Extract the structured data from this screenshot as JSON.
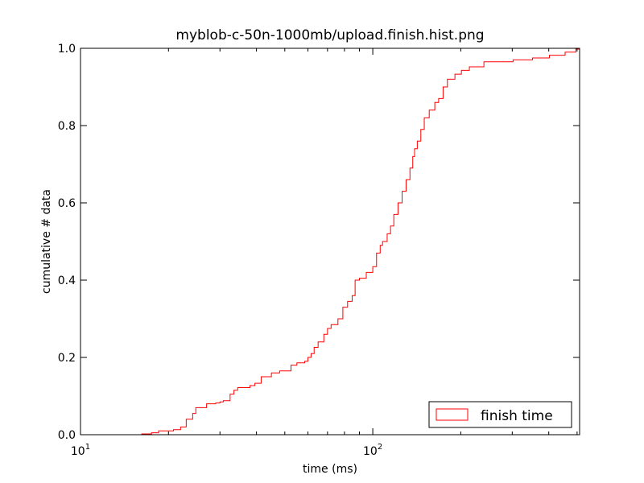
{
  "chart_data": {
    "type": "line",
    "title": "myblob-c-50n-1000mb/upload.finish.hist.png",
    "xlabel": "time (ms)",
    "ylabel": "cumulative # data",
    "xscale": "log",
    "xlim": [
      10,
      510
    ],
    "ylim": [
      0,
      1.0
    ],
    "x_ticks": [
      {
        "value": 10,
        "base": "10",
        "exp": "1"
      },
      {
        "value": 100,
        "base": "10",
        "exp": "2"
      }
    ],
    "y_ticks": [
      {
        "value": 0.0,
        "label": "0.0"
      },
      {
        "value": 0.2,
        "label": "0.2"
      },
      {
        "value": 0.4,
        "label": "0.4"
      },
      {
        "value": 0.6,
        "label": "0.6"
      },
      {
        "value": 0.8,
        "label": "0.8"
      },
      {
        "value": 1.0,
        "label": "1.0"
      }
    ],
    "grid": false,
    "legend_position": "lower-right",
    "series": [
      {
        "name": "finish time",
        "color": "#ff0000",
        "style": "step",
        "x": [
          16.2,
          17.5,
          18.5,
          20.8,
          22,
          23,
          24.2,
          24.8,
          27,
          29,
          30,
          30.8,
          32.5,
          33.5,
          34.5,
          38,
          39.5,
          41.5,
          45,
          48,
          52.5,
          55,
          58.5,
          60,
          61.5,
          63,
          65,
          68,
          70,
          72,
          76,
          79,
          82,
          85,
          87,
          90,
          95,
          100,
          103,
          106,
          108,
          112,
          115,
          118,
          122,
          126,
          130,
          134,
          137,
          139,
          142,
          146,
          150,
          156,
          163,
          168,
          174,
          180,
          191,
          201,
          214,
          240,
          302,
          352,
          402,
          455,
          495,
          510
        ],
        "y": [
          0.002,
          0.005,
          0.01,
          0.013,
          0.02,
          0.04,
          0.055,
          0.07,
          0.08,
          0.082,
          0.085,
          0.088,
          0.105,
          0.115,
          0.122,
          0.127,
          0.133,
          0.15,
          0.16,
          0.165,
          0.18,
          0.186,
          0.19,
          0.2,
          0.21,
          0.226,
          0.24,
          0.26,
          0.275,
          0.285,
          0.3,
          0.33,
          0.345,
          0.36,
          0.4,
          0.405,
          0.42,
          0.435,
          0.47,
          0.49,
          0.5,
          0.52,
          0.54,
          0.57,
          0.6,
          0.63,
          0.66,
          0.69,
          0.72,
          0.74,
          0.76,
          0.79,
          0.82,
          0.84,
          0.86,
          0.87,
          0.9,
          0.92,
          0.933,
          0.943,
          0.952,
          0.965,
          0.97,
          0.975,
          0.982,
          0.99,
          0.998,
          1.0
        ]
      }
    ]
  }
}
